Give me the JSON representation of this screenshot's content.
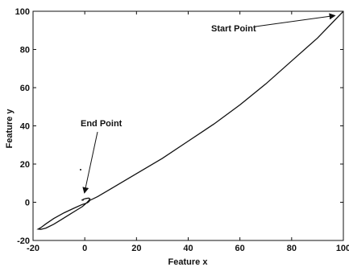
{
  "chart_data": {
    "type": "line",
    "title": "",
    "xlabel": "Feature x",
    "ylabel": "Feature y",
    "xlim": [
      -20,
      100
    ],
    "ylim": [
      -20,
      100
    ],
    "xticks": [
      -20,
      0,
      20,
      40,
      60,
      80,
      100
    ],
    "yticks": [
      -20,
      0,
      20,
      40,
      60,
      80,
      100
    ],
    "grid": false,
    "series": [
      {
        "x": [
          100,
          90,
          80,
          70,
          60,
          50,
          40,
          30,
          20,
          10,
          5,
          2,
          1.5,
          1,
          -1,
          -4,
          -8,
          -12,
          -15,
          -17,
          -18,
          -17,
          -15,
          -12,
          -9,
          -6,
          -3,
          -1,
          0.5,
          1.5,
          2,
          1.5,
          0.5,
          -0.5,
          -1,
          -0.5
        ],
        "y": [
          100,
          86,
          74,
          62,
          51,
          41,
          32,
          23,
          15,
          7,
          3,
          1,
          0.2,
          -0.3,
          -1.2,
          -3,
          -5.5,
          -8.5,
          -11.3,
          -13.3,
          -14,
          -14.2,
          -13.5,
          -11.5,
          -9,
          -6.5,
          -4,
          -2.3,
          -0.6,
          0.8,
          1.8,
          2.2,
          2,
          1.6,
          1.2,
          1
        ]
      }
    ],
    "annotations": [
      {
        "text": "Start Point",
        "x": 98,
        "y": 99
      },
      {
        "text": "End Point",
        "x": 0.5,
        "y": 1.5
      }
    ]
  }
}
